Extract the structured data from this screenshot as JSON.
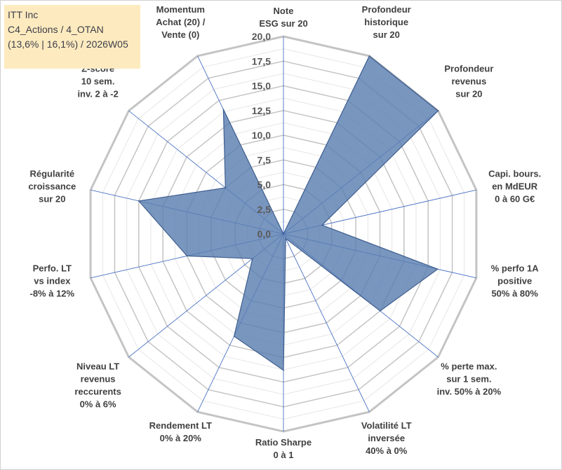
{
  "info": {
    "name": "ITT Inc",
    "line2": "C4_Actions / 4_OTAN",
    "line3": "(13,6% | 16,1%) / 2026W05"
  },
  "chart_data": {
    "type": "radar",
    "range": [
      0,
      20
    ],
    "ticks": [
      "0,0",
      "2,5",
      "5,0",
      "7,5",
      "10,0",
      "12,5",
      "15,0",
      "17,5",
      "20,0"
    ],
    "tick_values": [
      0,
      2.5,
      5,
      7.5,
      10,
      12.5,
      15,
      17.5,
      20
    ],
    "axes": [
      {
        "label": [
          "Note",
          "ESG sur 20"
        ],
        "value": 0
      },
      {
        "label": [
          "Profondeur",
          "historique",
          "sur 20"
        ],
        "value": 20
      },
      {
        "label": [
          "Profondeur",
          "revenus",
          "sur 20"
        ],
        "value": 20
      },
      {
        "label": [
          "Capi. bours.",
          "en MdEUR",
          "0 à 60 G€"
        ],
        "value": 4
      },
      {
        "label": [
          "% perfo 1A",
          "positive",
          "50% à 80%"
        ],
        "value": 16
      },
      {
        "label": [
          "% perte max.",
          "sur 1 sem.",
          "inv. 50% à 20%"
        ],
        "value": 12.5
      },
      {
        "label": [
          "Volatilité LT",
          "inversée",
          "40% à 0%"
        ],
        "value": 0.5
      },
      {
        "label": [
          "Ratio Sharpe",
          "0 à 1"
        ],
        "value": 13.8
      },
      {
        "label": [
          "Rendement LT",
          "0% à 20%"
        ],
        "value": 11.5
      },
      {
        "label": [
          "Niveau LT",
          "revenus",
          "reccurents",
          "0% à 6%"
        ],
        "value": 4
      },
      {
        "label": [
          "Perfo. LT",
          "vs index",
          "-8% à 12%"
        ],
        "value": 10
      },
      {
        "label": [
          "Régularité",
          "croissance",
          "sur 20"
        ],
        "value": 15
      },
      {
        "label": [
          "Z-score",
          "10 sem.",
          "inv. 2 à -2"
        ],
        "value": 7.5
      },
      {
        "label": [
          "Momentum",
          "Achat (20) /",
          "Vente (0)"
        ],
        "value": 14
      }
    ],
    "series_color": "#5b7fb1",
    "grid_color": "#c8c8c8",
    "spoke_color": "#4a72c4"
  }
}
